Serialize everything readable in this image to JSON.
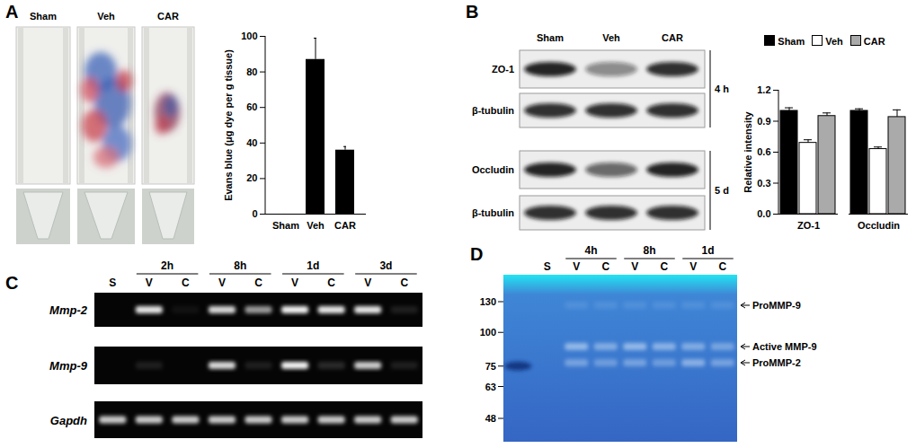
{
  "chart_data": [
    {
      "type": "bar",
      "categories": [
        "Sham",
        "Veh",
        "CAR"
      ],
      "values": [
        0,
        87,
        36
      ],
      "errors": [
        0,
        12,
        2
      ],
      "color": "#000000",
      "ylabel": "Evans blue (μg dye per g tissue)",
      "ylim": [
        0,
        100
      ],
      "yticks": [
        0,
        20,
        40,
        60,
        80,
        100
      ]
    },
    {
      "type": "bar",
      "categories": [
        "ZO-1",
        "Occludin"
      ],
      "series": [
        {
          "name": "Sham",
          "color": "#000000",
          "values": [
            1,
            1
          ],
          "errors": [
            0.03,
            0.02
          ]
        },
        {
          "name": "Veh",
          "color": "#ffffff",
          "values": [
            0.69,
            0.63
          ],
          "errors": [
            0.03,
            0.02
          ]
        },
        {
          "name": "CAR",
          "color": "#aaaaaa",
          "values": [
            0.95,
            0.94
          ],
          "errors": [
            0.03,
            0.07
          ]
        }
      ],
      "ylabel": "Relative intensity",
      "ylim": [
        0,
        1.2
      ],
      "yticks": [
        {
          "value": 0,
          "label": "0.0"
        },
        0.3,
        0.6,
        0.9,
        1.2
      ],
      "legend": "top"
    }
  ],
  "panels": {
    "A": {
      "letter": "A",
      "images": [
        "Sham",
        "Veh",
        "CAR"
      ]
    },
    "B": {
      "letter": "B",
      "lanes": [
        "Sham",
        "Veh",
        "CAR"
      ],
      "groups": [
        {
          "label": "4 h",
          "blots": [
            {
              "label": "ZO-1",
              "bands": [
                0.9,
                0.45,
                0.85
              ]
            },
            {
              "label": "β-tubulin",
              "bands": [
                0.85,
                0.85,
                0.85
              ]
            }
          ]
        },
        {
          "label": "5 d",
          "blots": [
            {
              "label": "Occludin",
              "bands": [
                0.9,
                0.6,
                0.9
              ]
            },
            {
              "label": "β-tubulin",
              "bands": [
                0.85,
                0.85,
                0.85
              ]
            }
          ]
        }
      ]
    },
    "C": {
      "letter": "C",
      "timepoints": [
        "2h",
        "8h",
        "1d",
        "3d"
      ],
      "lanes": [
        "S",
        "V",
        "C",
        "V",
        "C",
        "V",
        "C",
        "V",
        "C"
      ],
      "rows": [
        {
          "label": "Mmp-2",
          "bands": [
            0,
            0.9,
            0.05,
            0.85,
            0.6,
            0.95,
            0.9,
            0.9,
            0.1
          ]
        },
        {
          "label": "Mmp-9",
          "bands": [
            0,
            0.1,
            0,
            0.85,
            0.1,
            0.95,
            0.15,
            0.8,
            0.1
          ]
        },
        {
          "label": "Gapdh",
          "bands": [
            0.8,
            0.8,
            0.8,
            0.8,
            0.8,
            0.8,
            0.8,
            0.8,
            0.8
          ]
        }
      ]
    },
    "D": {
      "letter": "D",
      "timepoints": [
        "4h",
        "8h",
        "1d"
      ],
      "lanes": [
        null,
        "S",
        "V",
        "C",
        "V",
        "C",
        "V",
        "C"
      ],
      "markers": [
        130,
        100,
        75,
        63,
        48
      ],
      "ladder_band": 75,
      "bands": [
        {
          "label": "ProMMP-9",
          "intensity": [
            0,
            0,
            0.1,
            0.1,
            0.1,
            0.1,
            0.1,
            0.1
          ]
        },
        {
          "label": "Active MMP-9",
          "intensity": [
            0,
            0,
            0.5,
            0.4,
            0.5,
            0.45,
            0.4,
            0.35
          ]
        },
        {
          "label": "ProMMP-2",
          "intensity": [
            0,
            0,
            0.35,
            0.3,
            0.35,
            0.3,
            0.45,
            0.35
          ]
        }
      ]
    }
  }
}
